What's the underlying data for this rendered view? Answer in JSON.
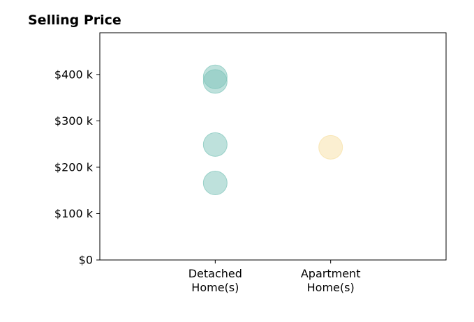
{
  "chart_data": {
    "type": "scatter",
    "title": "Selling Price",
    "xlabel": "",
    "ylabel": "",
    "categories": [
      [
        "Detached",
        "Home(s)"
      ],
      [
        "Apartment",
        "Home(s)"
      ]
    ],
    "xlim": [
      -1,
      2
    ],
    "ylim": [
      0,
      490000
    ],
    "y_ticks": [
      0,
      100000,
      200000,
      300000,
      400000
    ],
    "y_tick_labels": [
      "$0",
      "$100 k",
      "$200 k",
      "$300 k",
      "$400 k"
    ],
    "grid": false,
    "legend": "none",
    "series": [
      {
        "category_index": 0,
        "color": "#7ec4b9",
        "alpha": 0.5,
        "values": [
          395000,
          385000,
          249000,
          166000
        ]
      },
      {
        "category_index": 1,
        "color": "#f7dfa3",
        "alpha": 0.5,
        "values": [
          243000
        ]
      }
    ]
  }
}
